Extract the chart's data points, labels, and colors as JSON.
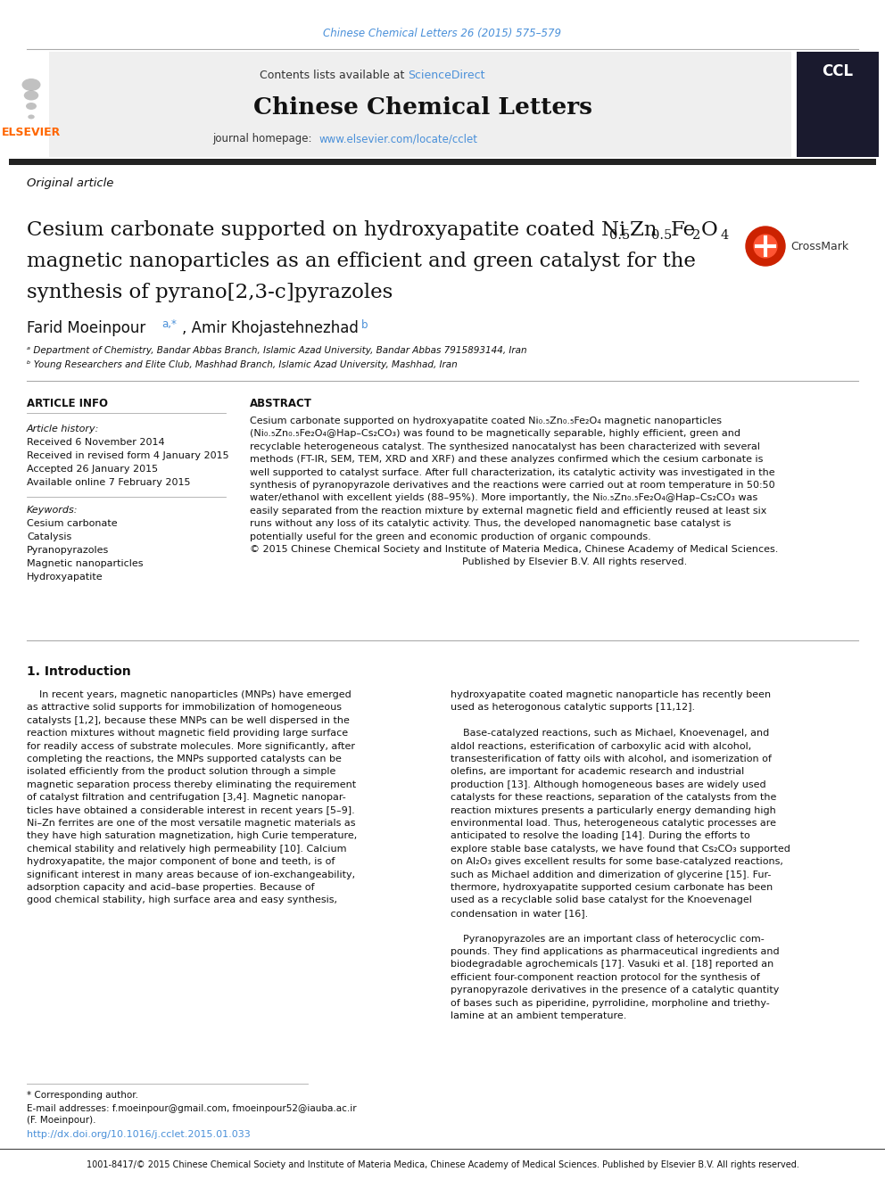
{
  "page_bg": "#ffffff",
  "top_citation": "Chinese Chemical Letters 26 (2015) 575–579",
  "top_citation_color": "#4a90d9",
  "header_sciencedirect_color": "#4a90d9",
  "journal_title": "Chinese Chemical Letters",
  "journal_homepage_color": "#4a90d9",
  "article_type": "Original article",
  "affil_a": "ᵃ Department of Chemistry, Bandar Abbas Branch, Islamic Azad University, Bandar Abbas 7915893144, Iran",
  "affil_b": "ᵇ Young Researchers and Elite Club, Mashhad Branch, Islamic Azad University, Mashhad, Iran",
  "article_info_title": "ARTICLE INFO",
  "abstract_title": "ABSTRACT",
  "article_history_label": "Article history:",
  "received": "Received 6 November 2014",
  "revised": "Received in revised form 4 January 2015",
  "accepted": "Accepted 26 January 2015",
  "available": "Available online 7 February 2015",
  "keywords_label": "Keywords:",
  "keywords": [
    "Cesium carbonate",
    "Catalysis",
    "Pyranopyrazoles",
    "Magnetic nanoparticles",
    "Hydroxyapatite"
  ],
  "footnote_star": "* Corresponding author.",
  "footnote_email": "E-mail addresses: f.moeinpour@gmail.com, fmoeinpour52@iauba.ac.ir",
  "footnote_name": "(F. Moeinpour).",
  "doi_text": "http://dx.doi.org/10.1016/j.cclet.2015.01.033",
  "doi_color": "#4a90d9",
  "bottom_text": "1001-8417/© 2015 Chinese Chemical Society and Institute of Materia Medica, Chinese Academy of Medical Sciences. Published by Elsevier B.V. All rights reserved.",
  "ref_color": "#4a90d9"
}
